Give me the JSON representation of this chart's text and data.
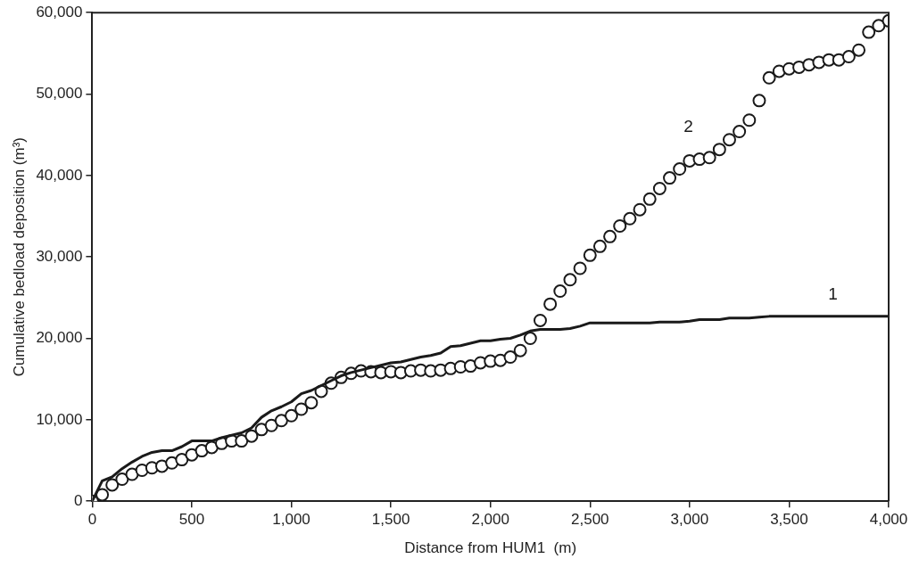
{
  "chart_data": {
    "type": "line",
    "xlabel": "Distance from HUM1  (m)",
    "ylabel": "Cumulative bedload deposition (m³)",
    "xlim": [
      0,
      4000
    ],
    "xticks": [
      {
        "value": 0,
        "label": "0"
      },
      {
        "value": 500,
        "label": "500"
      },
      {
        "value": 1000,
        "label": "1,000"
      },
      {
        "value": 1500,
        "label": "1,500"
      },
      {
        "value": 2000,
        "label": "2,000"
      },
      {
        "value": 2500,
        "label": "2,500"
      },
      {
        "value": 3000,
        "label": "3,000"
      },
      {
        "value": 3500,
        "label": "3,500"
      },
      {
        "value": 4000,
        "label": "4,000"
      }
    ],
    "ylim": [
      0,
      60000
    ],
    "yticks": [
      {
        "value": 0,
        "label": "0"
      },
      {
        "value": 10000,
        "label": "10,000"
      },
      {
        "value": 20000,
        "label": "20,000"
      },
      {
        "value": 30000,
        "label": "30,000"
      },
      {
        "value": 40000,
        "label": "40,000"
      },
      {
        "value": 50000,
        "label": "50,000"
      },
      {
        "value": 60000,
        "label": "60,000"
      }
    ],
    "grid": false,
    "legend": false,
    "series": [
      {
        "name": "1",
        "color": "#1a1a1a",
        "marker": "none",
        "line_style": "solid",
        "x": [
          0,
          50,
          100,
          150,
          200,
          250,
          300,
          350,
          400,
          450,
          500,
          550,
          600,
          650,
          700,
          750,
          800,
          850,
          900,
          950,
          1000,
          1050,
          1100,
          1150,
          1200,
          1250,
          1300,
          1350,
          1400,
          1450,
          1500,
          1550,
          1600,
          1650,
          1700,
          1750,
          1800,
          1850,
          1900,
          1950,
          2000,
          2050,
          2100,
          2150,
          2200,
          2250,
          2300,
          2350,
          2400,
          2450,
          2500,
          2600,
          2700,
          2800,
          2850,
          2950,
          3000,
          3050,
          3150,
          3200,
          3300,
          3350,
          3400,
          4000
        ],
        "values": [
          0,
          2500,
          3000,
          4000,
          4800,
          5500,
          6000,
          6200,
          6200,
          6700,
          7400,
          7400,
          7400,
          7800,
          8100,
          8400,
          9000,
          10300,
          11100,
          11600,
          12200,
          13200,
          13600,
          14200,
          14800,
          15400,
          15800,
          16100,
          16400,
          16700,
          17000,
          17100,
          17400,
          17700,
          17900,
          18200,
          19000,
          19100,
          19400,
          19700,
          19700,
          19900,
          20000,
          20400,
          20900,
          21100,
          21100,
          21100,
          21200,
          21500,
          21900,
          21900,
          21900,
          21900,
          22000,
          22000,
          22100,
          22300,
          22300,
          22500,
          22500,
          22600,
          22700,
          22700
        ]
      },
      {
        "name": "2",
        "type": "scatter",
        "color": "#1a1a1a",
        "marker": "circle",
        "x": [
          0,
          50,
          100,
          150,
          200,
          250,
          300,
          350,
          400,
          450,
          500,
          550,
          600,
          650,
          700,
          750,
          800,
          850,
          900,
          950,
          1000,
          1050,
          1100,
          1150,
          1200,
          1250,
          1300,
          1350,
          1400,
          1450,
          1500,
          1550,
          1600,
          1650,
          1700,
          1750,
          1800,
          1850,
          1900,
          1950,
          2000,
          2050,
          2100,
          2150,
          2200,
          2250,
          2300,
          2350,
          2400,
          2450,
          2500,
          2550,
          2600,
          2650,
          2700,
          2750,
          2800,
          2850,
          2900,
          2950,
          3000,
          3050,
          3100,
          3150,
          3200,
          3250,
          3300,
          3350,
          3400,
          3450,
          3500,
          3550,
          3600,
          3650,
          3700,
          3750,
          3800,
          3850,
          3900,
          3950,
          4000
        ],
        "values": [
          0,
          800,
          2000,
          2700,
          3300,
          3800,
          4100,
          4300,
          4700,
          5100,
          5700,
          6200,
          6600,
          7100,
          7400,
          7400,
          8000,
          8800,
          9300,
          9900,
          10500,
          11300,
          12100,
          13500,
          14500,
          15200,
          15700,
          16000,
          15900,
          15800,
          15900,
          15800,
          16000,
          16100,
          16000,
          16100,
          16300,
          16500,
          16600,
          17000,
          17200,
          17300,
          17700,
          18500,
          20000,
          22200,
          24200,
          25800,
          27200,
          28600,
          30200,
          31300,
          32500,
          33800,
          34700,
          35800,
          37100,
          38400,
          39700,
          40800,
          41800,
          42000,
          42200,
          43200,
          44400,
          45400,
          46800,
          49200,
          52000,
          52800,
          53100,
          53300,
          53600,
          53900,
          54200,
          54200,
          54600,
          55400,
          57600,
          58400,
          59000
        ]
      }
    ]
  }
}
